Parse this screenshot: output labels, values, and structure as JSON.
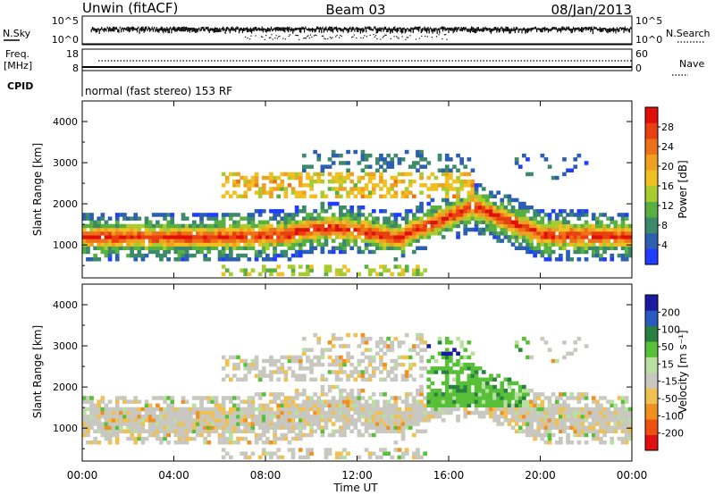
{
  "header": {
    "station": "Unwin (fitACF)",
    "beam": "Beam 03",
    "date": "08/Jan/2013"
  },
  "top_panel": {
    "nsky_label": "N.Sky",
    "nsky_ticks": [
      "10^5",
      "10^0"
    ],
    "nsearch_label": "N.Search",
    "nsearch_ticks": [
      "10^5",
      "10^0"
    ],
    "freq_label": "Freq.",
    "freq_unit": "[MHz]",
    "freq_ticks": [
      18,
      8
    ],
    "nave_label": "Nave",
    "nave_ticks": [
      60,
      0
    ],
    "cpid_label": "CPID",
    "cpid_text": "normal (fast stereo) 153 RF"
  },
  "chart_data": [
    {
      "type": "heatmap",
      "name": "power",
      "ylabel": "Slant Range [km]",
      "xlabel": "",
      "xlim": [
        0,
        24
      ],
      "ylim": [
        200,
        4500
      ],
      "yticks": [
        1000,
        2000,
        3000,
        4000
      ],
      "colorbar": {
        "label": "Power [dB]",
        "range": [
          0,
          32
        ],
        "tick_labels": [
          "4",
          "8",
          "12",
          "16",
          "20",
          "24",
          "28"
        ],
        "colors": [
          "#1f3cff",
          "#2c5fb0",
          "#3d8a6a",
          "#58b040",
          "#a8cc30",
          "#f0c020",
          "#f0a020",
          "#ee7018",
          "#e84010",
          "#e01008"
        ]
      }
    },
    {
      "type": "heatmap",
      "name": "velocity",
      "ylabel": "Slant Range [km]",
      "xlabel": "Time UT",
      "xlim": [
        0,
        24
      ],
      "ylim": [
        200,
        4500
      ],
      "yticks": [
        1000,
        2000,
        3000,
        4000
      ],
      "xtick_labels": [
        "00:00",
        "04:00",
        "08:00",
        "12:00",
        "16:00",
        "20:00",
        "00:00"
      ],
      "colorbar": {
        "label": "Velocity [m s⁻¹]",
        "tick_labels": [
          "200",
          "100",
          "50",
          "15",
          "-15",
          "-50",
          "-100",
          "-200"
        ],
        "colors": [
          "#1a1aa0",
          "#2a5ac0",
          "#2a8040",
          "#58c038",
          "#b8e0a0",
          "#c8c8c0",
          "#f0c050",
          "#f09020",
          "#ee5010",
          "#e01010"
        ]
      }
    }
  ]
}
